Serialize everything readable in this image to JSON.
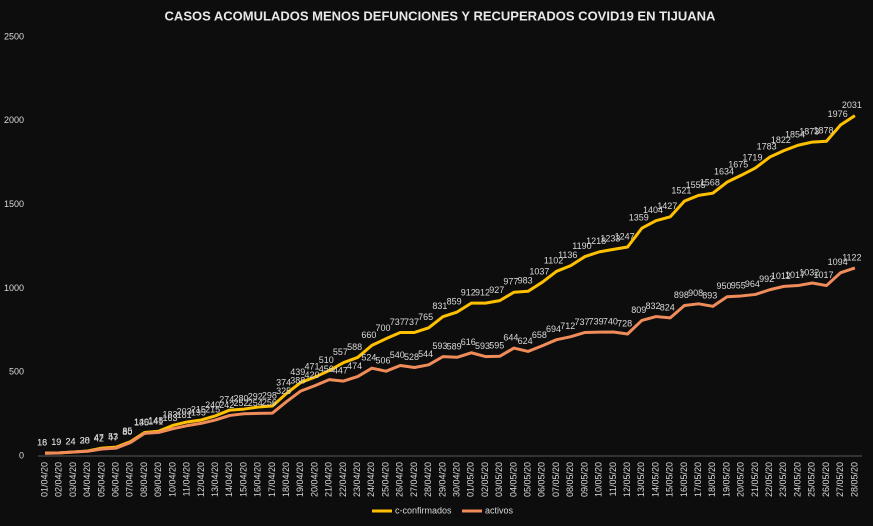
{
  "chart_data": {
    "type": "line",
    "title": "CASOS ACOMULADOS  MENOS DEFUNCIONES Y RECUPERADOS COVID19 EN TIJUANA",
    "categories": [
      "01/04/20",
      "02/04/20",
      "03/04/20",
      "04/04/20",
      "05/04/20",
      "06/04/20",
      "07/04/20",
      "08/04/20",
      "09/04/20",
      "10/04/20",
      "11/04/20",
      "12/04/20",
      "13/04/20",
      "14/04/20",
      "15/04/20",
      "16/04/20",
      "17/04/20",
      "18/04/20",
      "19/04/20",
      "20/04/20",
      "21/04/20",
      "22/04/20",
      "23/04/20",
      "24/04/20",
      "25/04/20",
      "26/04/20",
      "27/04/20",
      "28/04/20",
      "29/04/20",
      "30/04/20",
      "01/05/20",
      "02/05/20",
      "03/05/20",
      "04/05/20",
      "05/05/20",
      "06/05/20",
      "07/05/20",
      "08/05/20",
      "09/05/20",
      "10/05/20",
      "11/05/20",
      "12/05/20",
      "13/05/20",
      "14/05/20",
      "15/05/20",
      "16/05/20",
      "17/05/20",
      "18/05/20",
      "19/05/20",
      "20/05/20",
      "21/05/20",
      "22/05/20",
      "23/05/20",
      "24/05/20",
      "25/05/20",
      "26/05/20",
      "27/05/20",
      "28/05/20"
    ],
    "series": [
      {
        "name": "c-confirmados",
        "color": "#ffc000",
        "values": [
          18,
          19,
          24,
          30,
          47,
          53,
          85,
          140,
          148,
          183,
          203,
          215,
          240,
          274,
          280,
          292,
          298,
          374,
          439,
          471,
          510,
          557,
          588,
          660,
          700,
          737,
          737,
          765,
          831,
          859,
          912,
          912,
          927,
          977,
          983,
          1037,
          1102,
          1136,
          1190,
          1218,
          1233,
          1247,
          1359,
          1404,
          1427,
          1521,
          1555,
          1568,
          1634,
          1675,
          1719,
          1783,
          1822,
          1854,
          1873,
          1878,
          1976,
          2031
        ]
      },
      {
        "name": "activos",
        "color": "#f08c5a",
        "values": [
          16,
          19,
          24,
          28,
          42,
          47,
          80,
          135,
          141,
          163,
          181,
          195,
          215,
          242,
          252,
          254,
          256,
          325,
          388,
          420,
          456,
          447,
          474,
          524,
          506,
          540,
          528,
          544,
          593,
          589,
          616,
          593,
          595,
          644,
          624,
          658,
          694,
          712,
          737,
          739,
          740,
          728,
          809,
          832,
          824,
          898,
          908,
          893,
          950,
          955,
          964,
          992,
          1012,
          1017,
          1032,
          1017,
          1094,
          1122
        ]
      }
    ],
    "ylim": [
      0,
      2500
    ],
    "yticks": [
      0,
      500,
      1000,
      1500,
      2000,
      2500
    ],
    "grid": false
  }
}
